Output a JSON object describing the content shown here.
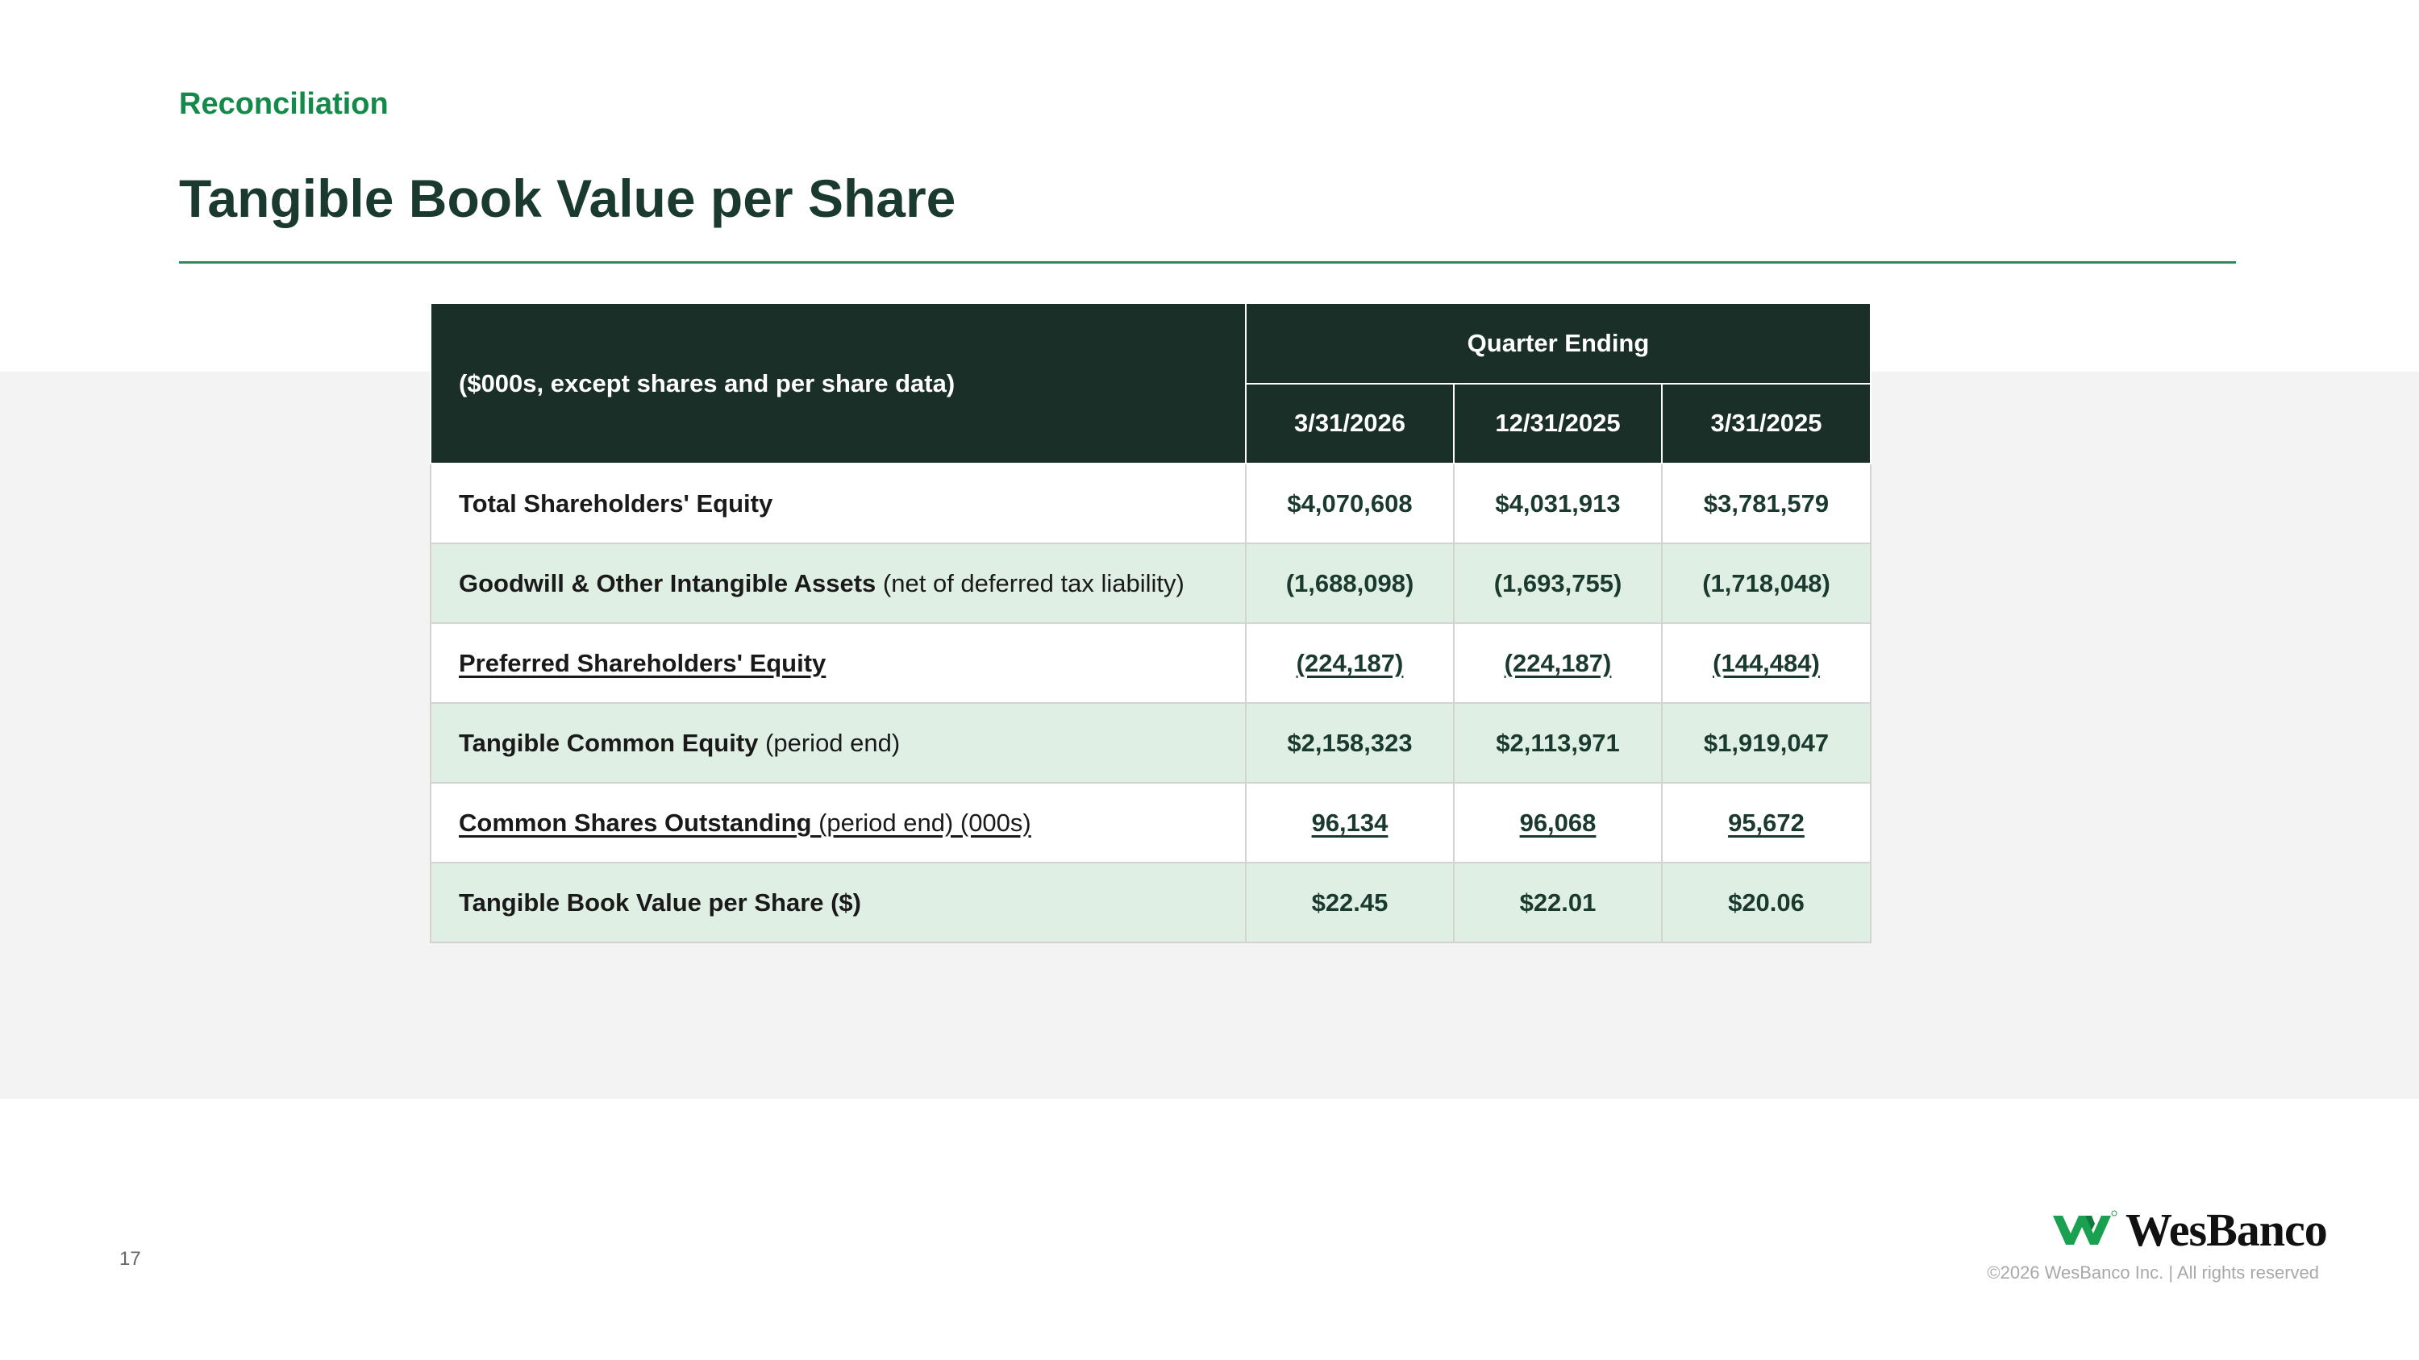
{
  "header": {
    "eyebrow": "Reconciliation",
    "title": "Tangible Book Value per Share"
  },
  "table": {
    "corner_label": "($000s, except shares and per share data)",
    "group_header": "Quarter Ending",
    "columns": [
      "3/31/2026",
      "12/31/2025",
      "3/31/2025"
    ],
    "rows": [
      {
        "label_bold": "Total Shareholders' Equity",
        "label_note": "",
        "values": [
          "$4,070,608",
          "$4,031,913",
          "$3,781,579"
        ]
      },
      {
        "label_bold": "Goodwill & Other Intangible Assets",
        "label_note": " (net of deferred tax liability)",
        "values": [
          "(1,688,098)",
          "(1,693,755)",
          "(1,718,048)"
        ]
      },
      {
        "label_bold": "Preferred Shareholders' Equity",
        "label_note": "",
        "values": [
          "(224,187)",
          "(224,187)",
          "(144,484)"
        ]
      },
      {
        "label_bold": "Tangible Common Equity",
        "label_note": " (period end)",
        "values": [
          "$2,158,323",
          "$2,113,971",
          "$1,919,047"
        ]
      },
      {
        "label_bold": "Common Shares Outstanding",
        "label_note": " (period end) (000s)",
        "values": [
          "96,134",
          "96,068",
          "95,672"
        ]
      },
      {
        "label_bold": "Tangible Book Value per Share ($)",
        "label_note": "",
        "values": [
          "$22.45",
          "$22.01",
          "$20.06"
        ]
      }
    ]
  },
  "footer": {
    "page_number": "17",
    "logo_text": "WesBanco",
    "logo_mark": "®",
    "copyright": "©2026 WesBanco Inc.  |  All rights reserved"
  },
  "colors": {
    "accent_green": "#138a4a",
    "title_dark_green": "#1b3a2f",
    "header_fill": "#1b2f29",
    "alt_row_fill": "#e0efe4",
    "logo_green": "#1aa051"
  }
}
